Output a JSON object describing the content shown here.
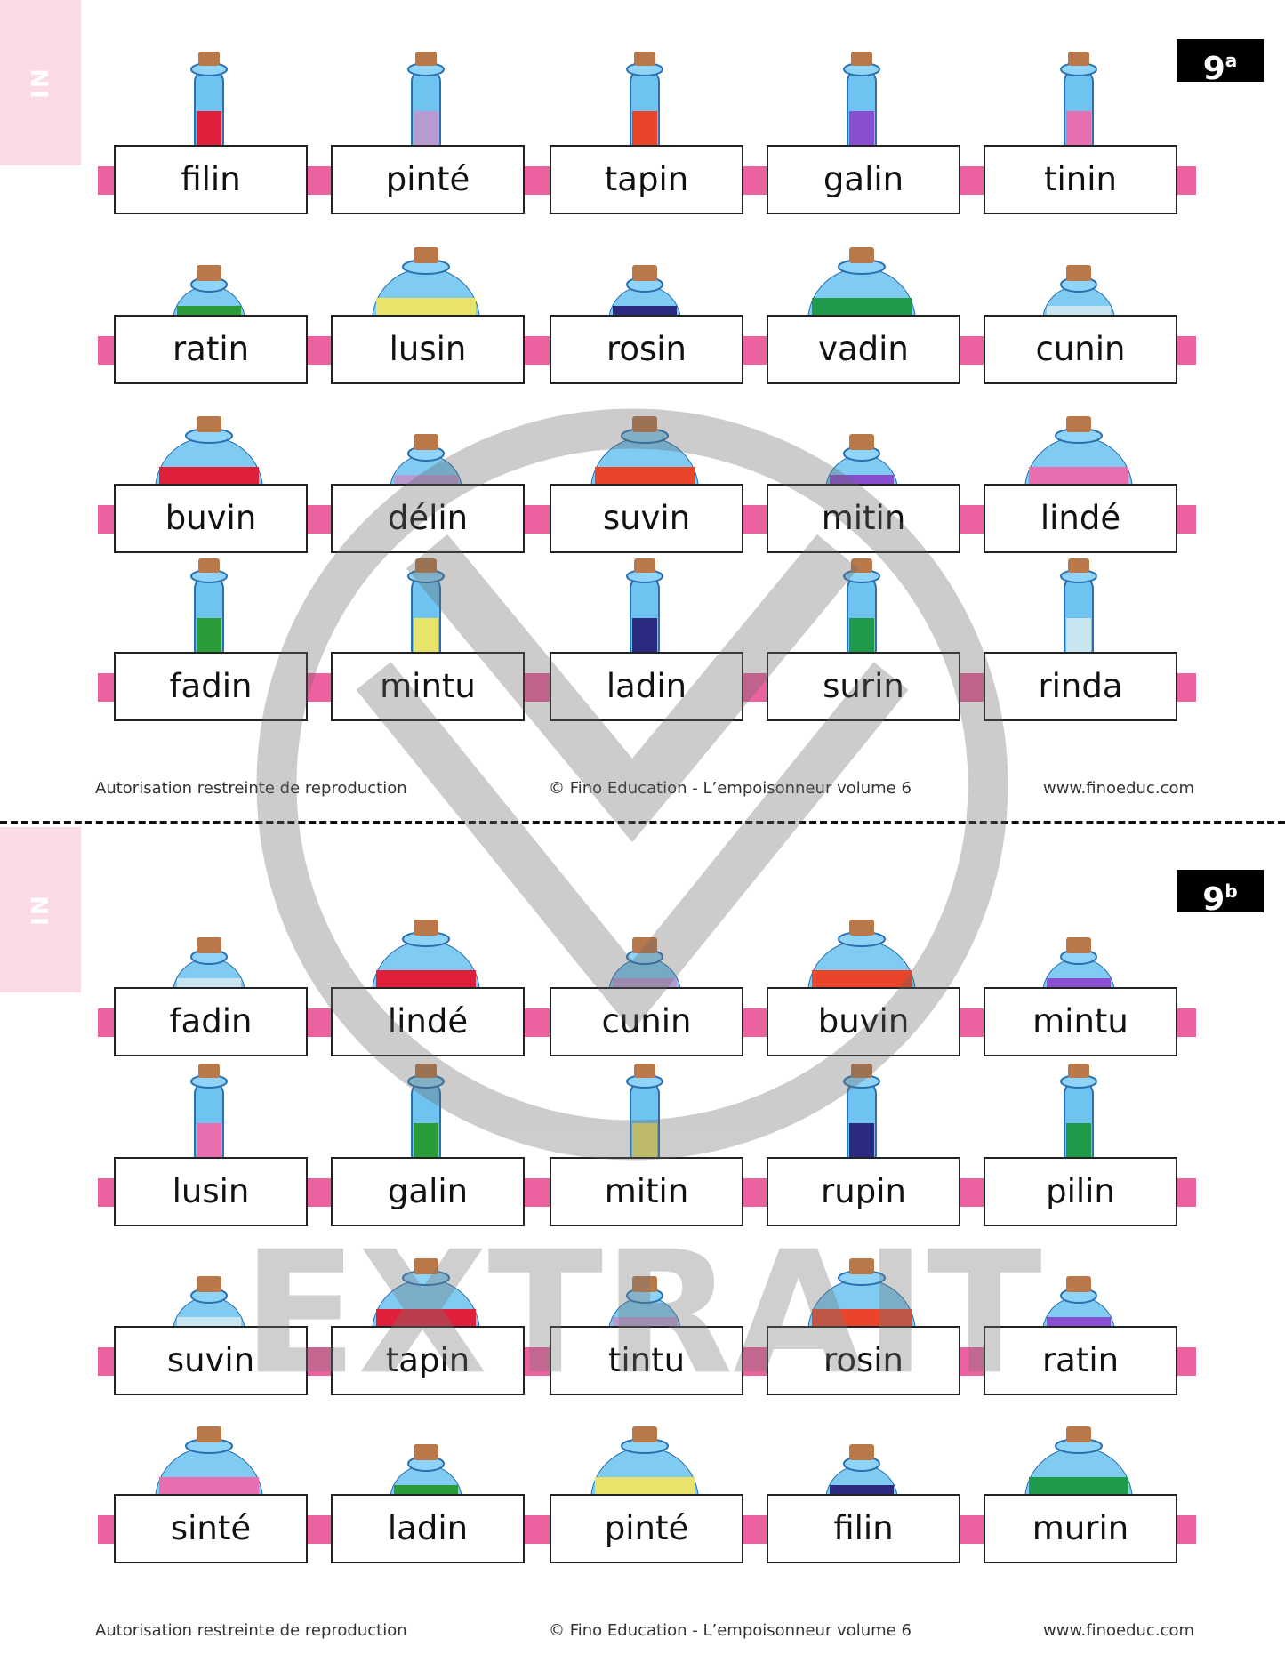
{
  "watermark": "EXTRAIT",
  "sections": [
    {
      "tab": "IN",
      "label": {
        "number": "9",
        "suffix": "a"
      },
      "rows": [
        [
          "filin",
          "pinté",
          "tapin",
          "galin",
          "tinin"
        ],
        [
          "ratin",
          "lusin",
          "rosin",
          "vadin",
          "cunin"
        ],
        [
          "buvin",
          "délin",
          "suvin",
          "mitin",
          "lindé"
        ],
        [
          "fadin",
          "mintu",
          "ladin",
          "surin",
          "rinda"
        ]
      ],
      "footer": {
        "left": "Autorisation restreinte de reproduction",
        "center": "© Fino Education - L’empoisonneur volume 6",
        "right": "www.finoeduc.com"
      }
    },
    {
      "tab": "IN",
      "label": {
        "number": "9",
        "suffix": "b"
      },
      "rows": [
        [
          "fadin",
          "lindé",
          "cunin",
          "buvin",
          "mintu"
        ],
        [
          "lusin",
          "galin",
          "mitin",
          "rupin",
          "pilin"
        ],
        [
          "suvin",
          "tapin",
          "tintu",
          "rosin",
          "ratin"
        ],
        [
          "sinté",
          "ladin",
          "pinté",
          "filin",
          "murin"
        ]
      ],
      "footer": {
        "left": "Autorisation restreinte de reproduction",
        "center": "© Fino Education - L’empoisonneur volume 6",
        "right": "www.finoeduc.com"
      }
    }
  ]
}
